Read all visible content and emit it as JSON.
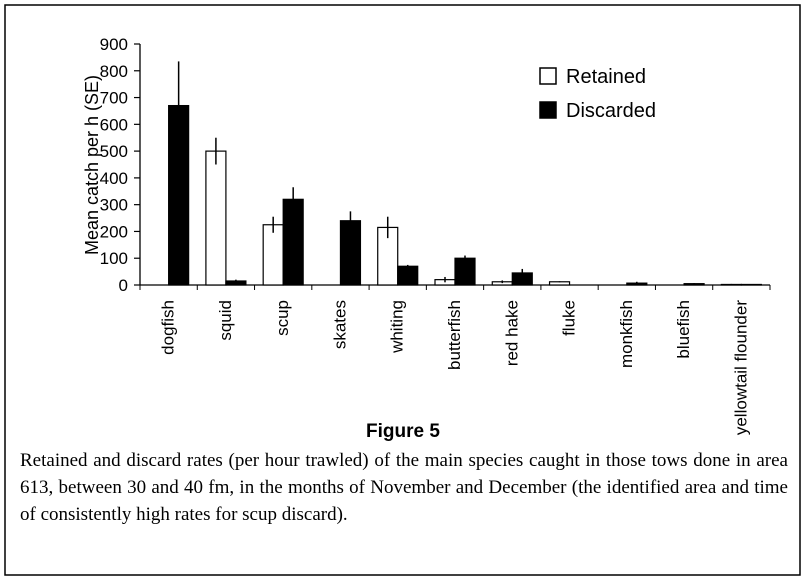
{
  "chart_data": {
    "type": "bar",
    "figure_label": "Figure 5",
    "caption": "Retained and discard rates (per hour trawled) of the main species caught in those tows done in area 613, between 30 and 40 fm, in the months of November and December (the identified area and time of consistently high rates for scup discard).",
    "y_label": "Mean catch per h (SE)",
    "categories": [
      "dogfish",
      "squid",
      "scup",
      "skates",
      "whiting",
      "butterfish",
      "red hake",
      "fluke",
      "monkfish",
      "bluefish",
      "yellowtail flounder"
    ],
    "series": [
      {
        "name": "Retained",
        "color": "#ffffff",
        "values": [
          0,
          500,
          225,
          0,
          215,
          20,
          12,
          12,
          0,
          0,
          2
        ],
        "errors": [
          0,
          50,
          30,
          0,
          40,
          10,
          5,
          2,
          0,
          0,
          2
        ]
      },
      {
        "name": "Discarded",
        "color": "#000000",
        "values": [
          670,
          15,
          320,
          240,
          70,
          100,
          45,
          0,
          7,
          5,
          2
        ],
        "errors": [
          165,
          5,
          45,
          35,
          5,
          10,
          15,
          0,
          5,
          2,
          1
        ]
      }
    ],
    "ylim": [
      0,
      900
    ],
    "yticks": [
      0,
      100,
      200,
      300,
      400,
      500,
      600,
      700,
      800,
      900
    ],
    "legend": "upper right"
  }
}
